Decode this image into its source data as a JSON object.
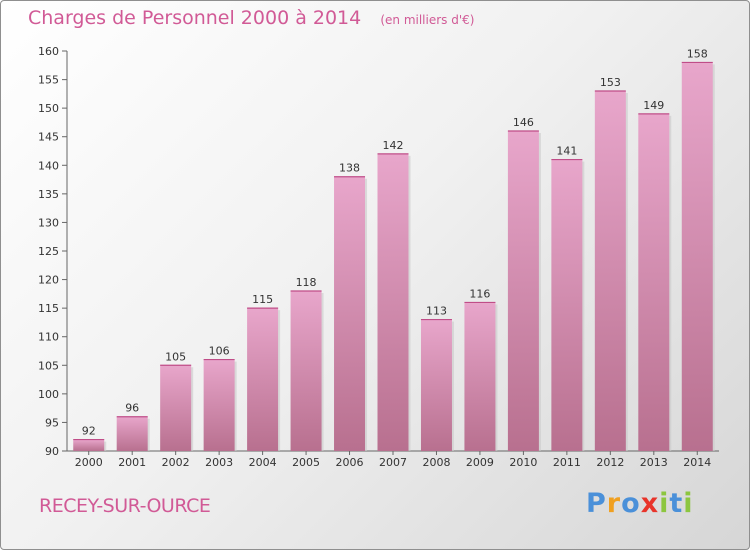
{
  "header": {
    "title": "Charges de Personnel 2000 à 2014",
    "unit": "(en milliers d'€)"
  },
  "footer": {
    "location": "RECEY-SUR-OURCE",
    "brand_letters": [
      "P",
      "r",
      "o",
      "x",
      "i",
      "t",
      "i"
    ]
  },
  "colors": {
    "title": "#d15a96",
    "bar_top": "#e8a6cb",
    "bar_bottom": "#b8708f",
    "brand": [
      "#4a90d9",
      "#f0a020",
      "#4a90d9",
      "#e8342a",
      "#8cc63f",
      "#4a90d9",
      "#8cc63f"
    ]
  },
  "chart_data": {
    "type": "bar",
    "categories": [
      "2000",
      "2001",
      "2002",
      "2003",
      "2004",
      "2005",
      "2006",
      "2007",
      "2008",
      "2009",
      "2010",
      "2011",
      "2012",
      "2013",
      "2014"
    ],
    "values": [
      92,
      96,
      105,
      106,
      115,
      118,
      138,
      142,
      113,
      116,
      146,
      141,
      153,
      149,
      158
    ],
    "yticks": [
      90,
      95,
      100,
      105,
      110,
      115,
      120,
      125,
      130,
      135,
      140,
      145,
      150,
      155,
      160
    ],
    "ylim": [
      90,
      160
    ],
    "grid": false,
    "data_labels": true
  }
}
